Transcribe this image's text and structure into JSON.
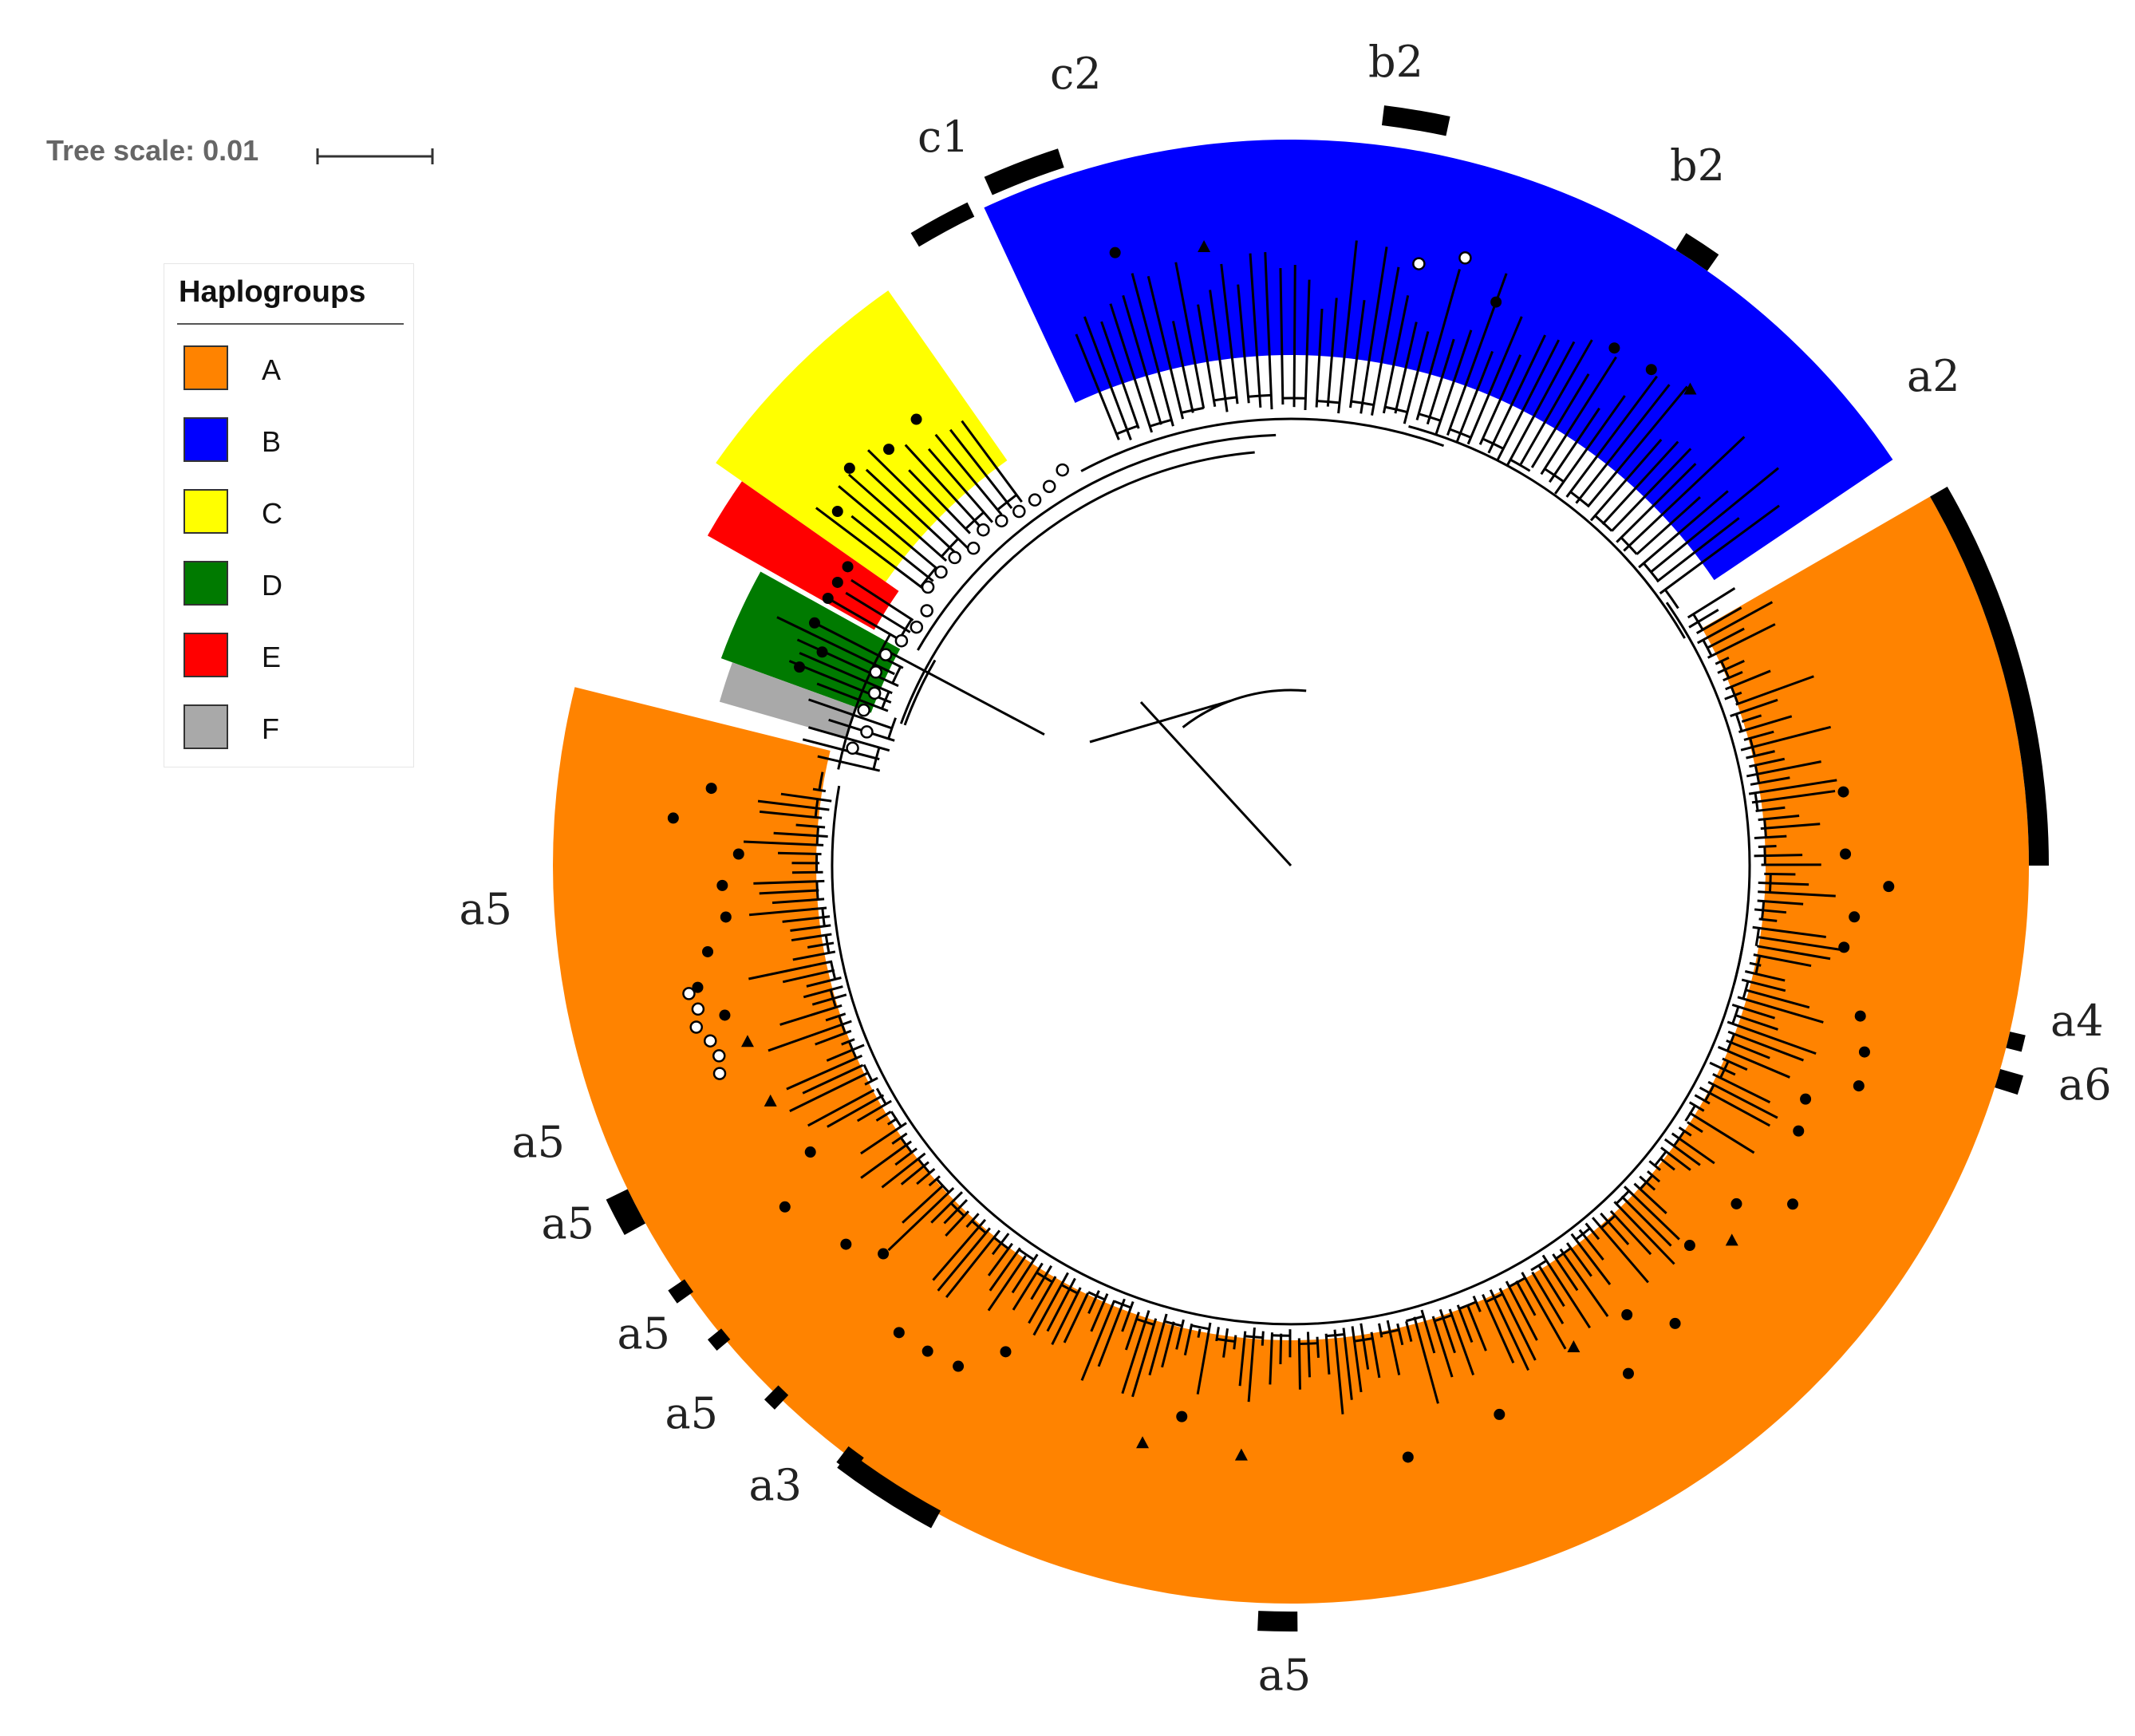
{
  "tree_scale": {
    "label": "Tree scale: 0.01"
  },
  "legend": {
    "title": "Haplogroups",
    "items": [
      {
        "label": "A",
        "color": "#ff8300"
      },
      {
        "label": "B",
        "color": "#0000ff"
      },
      {
        "label": "C",
        "color": "#ffff00"
      },
      {
        "label": "D",
        "color": "#007a00"
      },
      {
        "label": "E",
        "color": "#ff0000"
      },
      {
        "label": "F",
        "color": "#a9a9a9"
      }
    ]
  },
  "clade_labels": [
    "c2",
    "c1",
    "b2",
    "b2",
    "a2",
    "a4",
    "a6",
    "a5",
    "a5",
    "a5",
    "a5",
    "a5",
    "a3",
    "a5"
  ]
}
